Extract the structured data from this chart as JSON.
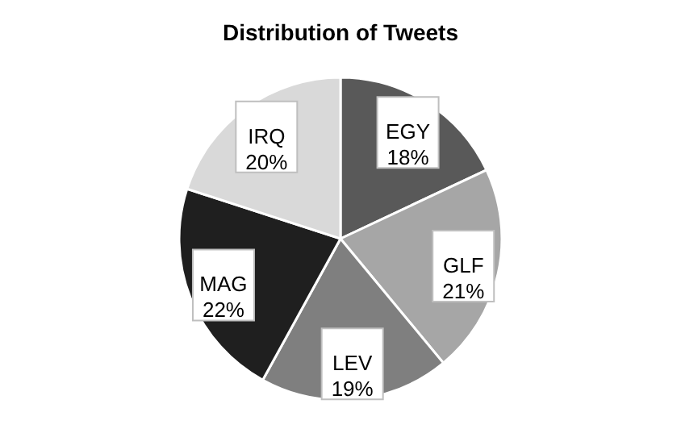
{
  "chart_data": {
    "type": "pie",
    "title": "Distribution of Tweets",
    "categories": [
      "EGY",
      "GLF",
      "LEV",
      "MAG",
      "IRQ"
    ],
    "values": [
      18,
      21,
      19,
      22,
      20
    ],
    "colors": [
      "#595959",
      "#a6a6a6",
      "#7f7f7f",
      "#1f1f1f",
      "#d9d9d9"
    ],
    "value_labels": [
      "18%",
      "21%",
      "19%",
      "22%",
      "20%"
    ]
  }
}
